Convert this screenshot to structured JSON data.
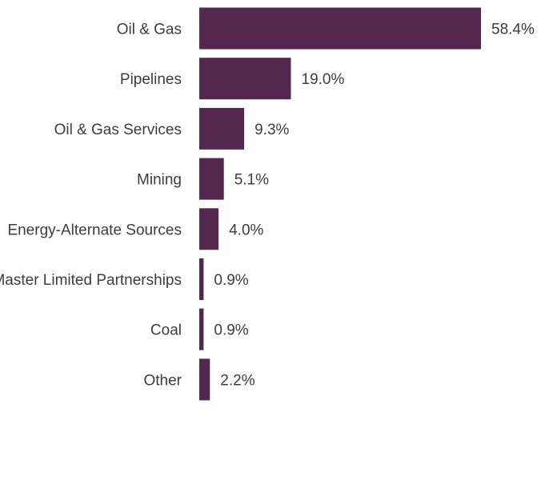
{
  "chart_data": {
    "type": "bar",
    "orientation": "horizontal",
    "categories": [
      "Oil & Gas",
      "Pipelines",
      "Oil & Gas Services",
      "Mining",
      "Energy-Alternate Sources",
      "Master Limited Partnerships",
      "Coal",
      "Other"
    ],
    "values": [
      58.4,
      19.0,
      9.3,
      5.1,
      4.0,
      0.9,
      0.9,
      2.2
    ],
    "value_labels": [
      "58.4%",
      "19.0%",
      "9.3%",
      "5.1%",
      "4.0%",
      "0.9%",
      "0.9%",
      "2.2%"
    ],
    "unit": "%",
    "title": "",
    "xlabel": "",
    "ylabel": "",
    "grid": false,
    "legend": "none",
    "bar_color": "#54274e"
  }
}
